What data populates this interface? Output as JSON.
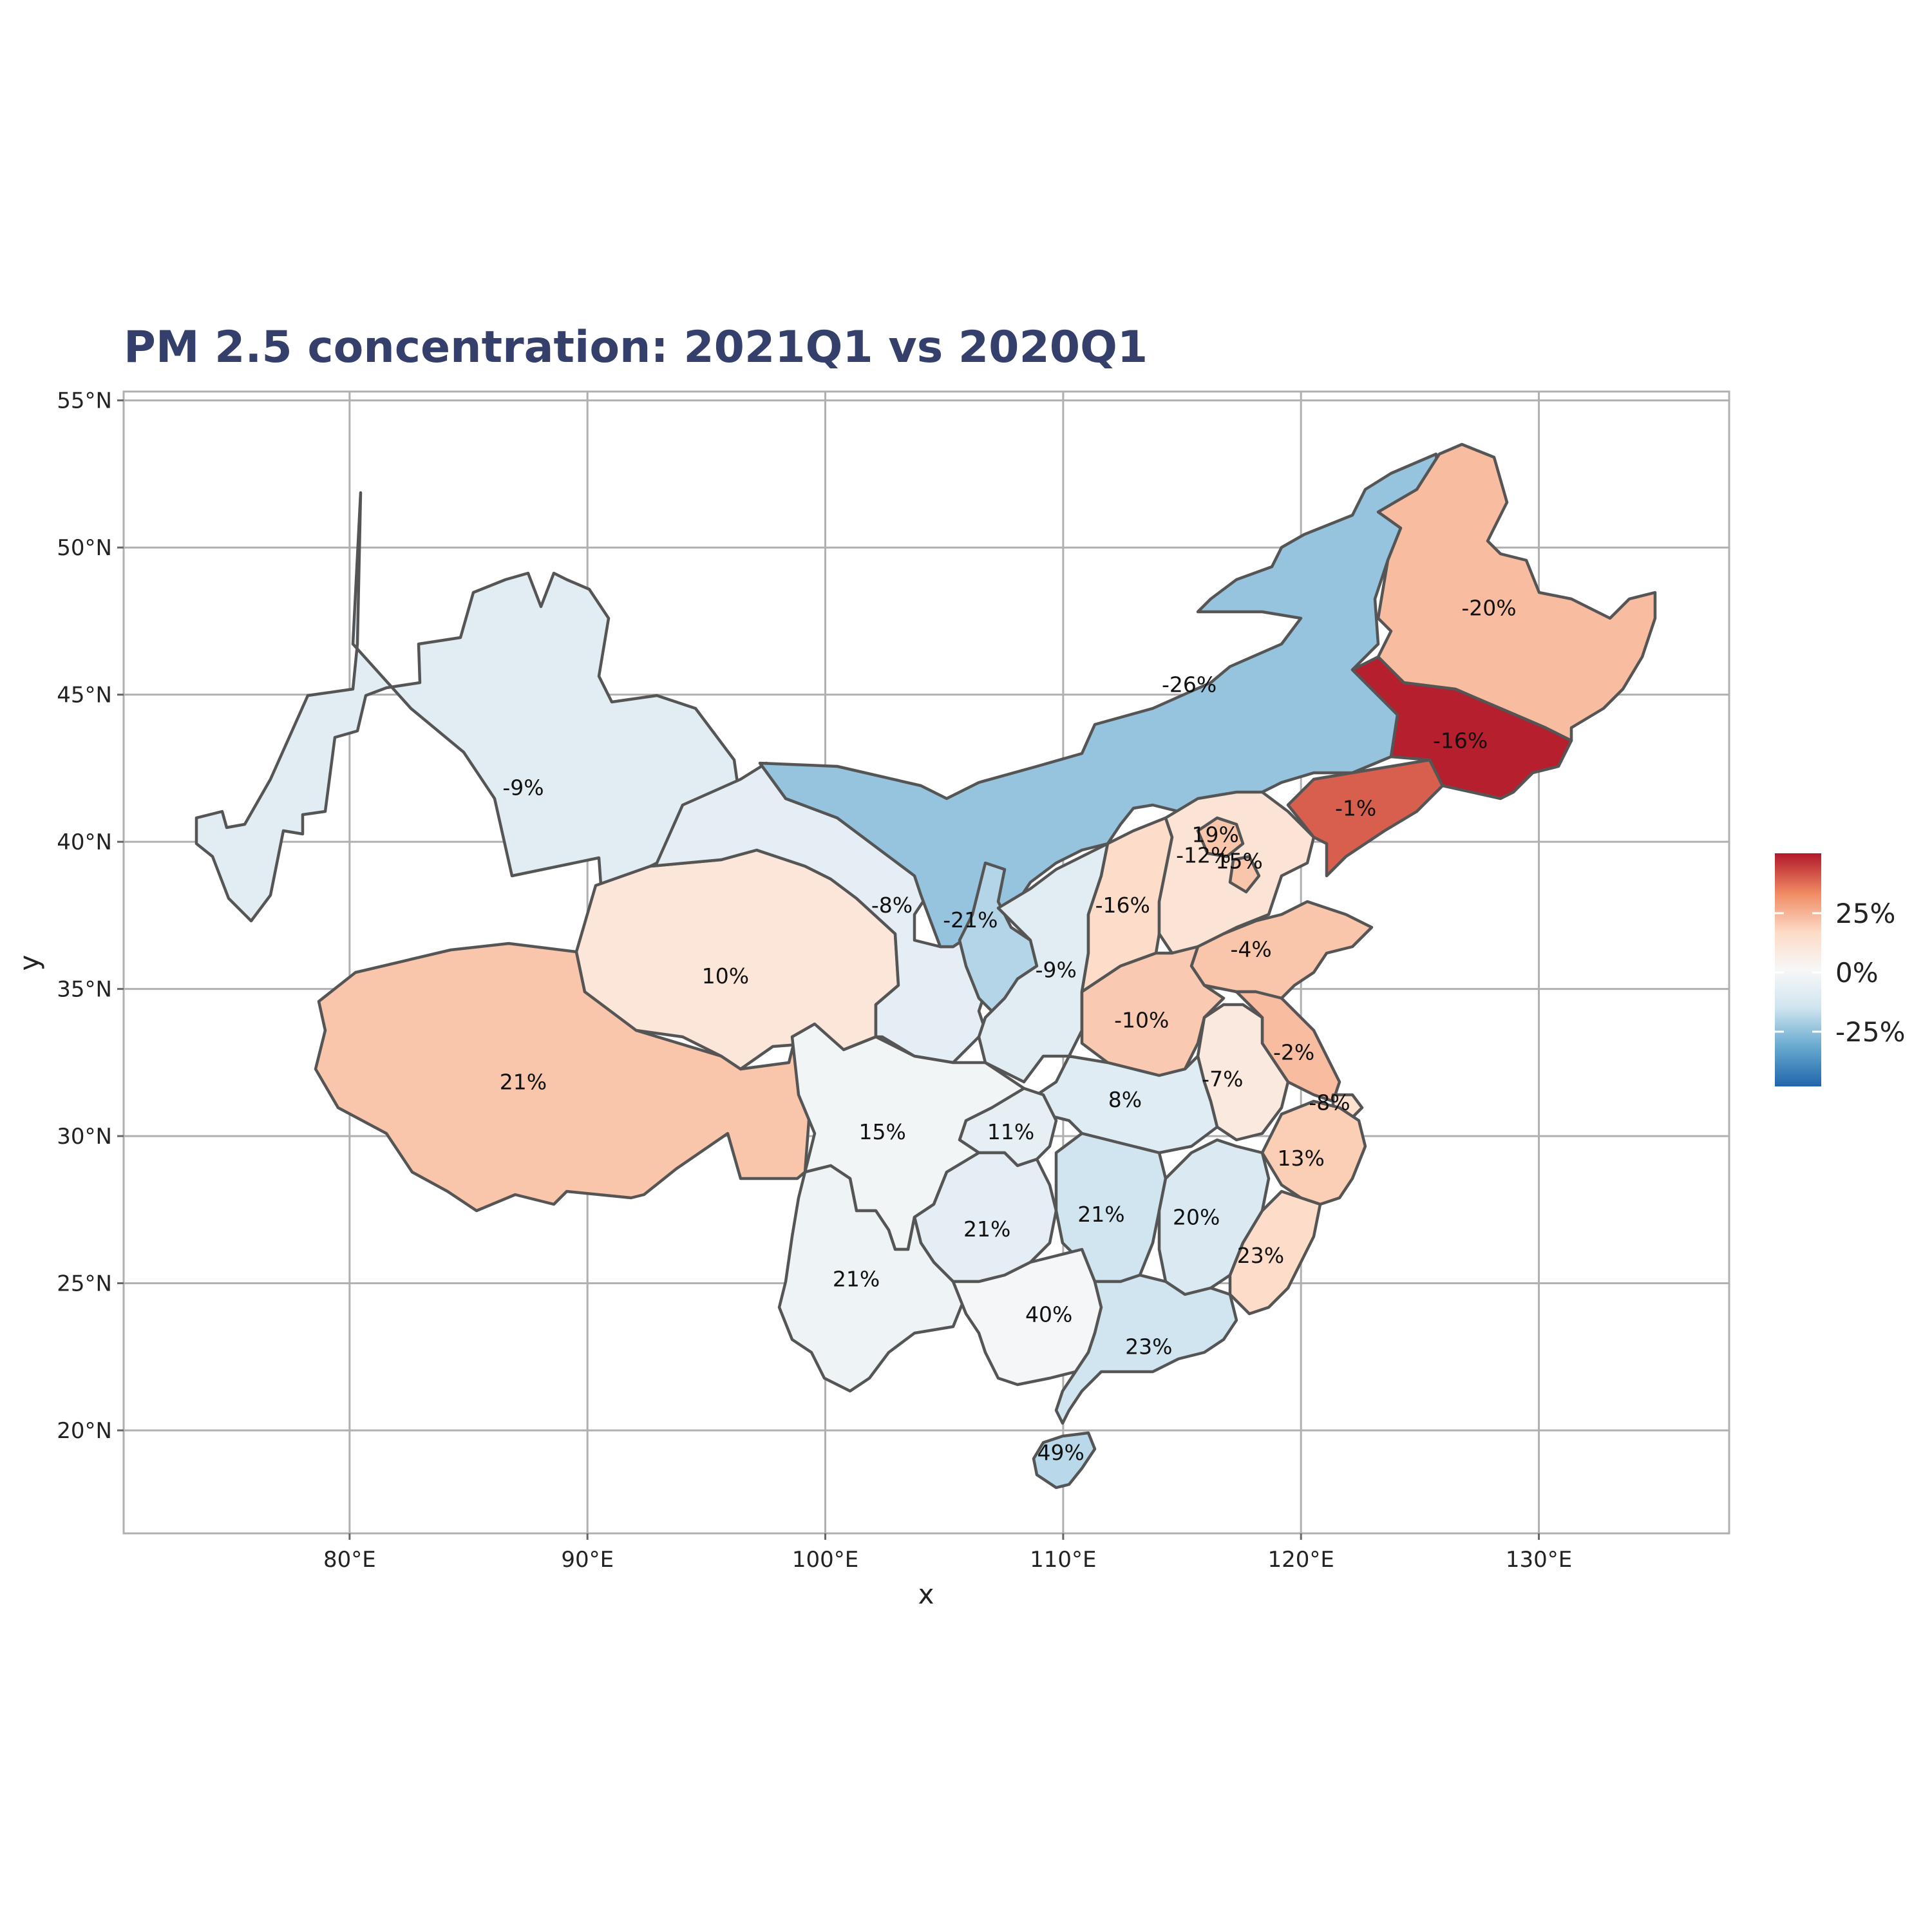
{
  "title": "PM 2.5 concentration: 2021Q1 vs 2020Q1",
  "x_axis": {
    "title": "x",
    "ticks": [
      {
        "value": 80,
        "label": "80°E"
      },
      {
        "value": 90,
        "label": "90°E"
      },
      {
        "value": 100,
        "label": "100°E"
      },
      {
        "value": 110,
        "label": "110°E"
      },
      {
        "value": 120,
        "label": "120°E"
      },
      {
        "value": 130,
        "label": "130°E"
      }
    ],
    "range": [
      70.5,
      138
    ]
  },
  "y_axis": {
    "title": "y",
    "ticks": [
      {
        "value": 20,
        "label": "20°N"
      },
      {
        "value": 25,
        "label": "25°N"
      },
      {
        "value": 30,
        "label": "30°N"
      },
      {
        "value": 35,
        "label": "35°N"
      },
      {
        "value": 40,
        "label": "40°N"
      },
      {
        "value": 45,
        "label": "45°N"
      },
      {
        "value": 50,
        "label": "50°N"
      },
      {
        "value": 55,
        "label": "55°N"
      }
    ],
    "range": [
      16.5,
      55.3
    ]
  },
  "legend": {
    "placement": "right",
    "labels": [
      "25%",
      "0%",
      "-25%"
    ],
    "colors": [
      "#2166ac",
      "#67a9cf",
      "#d1e5f0",
      "#f7f7f7",
      "#fddbc7",
      "#ef8a62",
      "#b2182b"
    ]
  },
  "chart_data": {
    "type": "choropleth",
    "title": "PM 2.5 concentration: 2021Q1 vs 2020Q1",
    "xlabel": "x",
    "ylabel": "y",
    "grid": true,
    "regions": [
      {
        "label": "-9%",
        "value": -9,
        "lon": 87.3,
        "lat": 41.8
      },
      {
        "label": "21%",
        "value": 21,
        "lon": 87.3,
        "lat": 31.8
      },
      {
        "label": "10%",
        "value": 10,
        "lon": 95.8,
        "lat": 35.4
      },
      {
        "label": "-8%",
        "value": -8,
        "lon": 102.8,
        "lat": 37.8
      },
      {
        "label": "-26%",
        "value": -26,
        "lon": 115.3,
        "lat": 45.3
      },
      {
        "label": "-21%",
        "value": -21,
        "lon": 106.1,
        "lat": 37.3
      },
      {
        "label": "-9%",
        "value": -9,
        "lon": 109.7,
        "lat": 35.6
      },
      {
        "label": "15%",
        "value": 15,
        "lon": 102.4,
        "lat": 30.1
      },
      {
        "label": "11%",
        "value": 11,
        "lon": 107.8,
        "lat": 30.1
      },
      {
        "label": "21%",
        "value": 21,
        "lon": 101.3,
        "lat": 25.1
      },
      {
        "label": "21%",
        "value": 21,
        "lon": 106.8,
        "lat": 26.8
      },
      {
        "label": "40%",
        "value": 40,
        "lon": 109.4,
        "lat": 23.9
      },
      {
        "label": "49%",
        "value": 49,
        "lon": 109.9,
        "lat": 19.2
      },
      {
        "label": "23%",
        "value": 23,
        "lon": 113.6,
        "lat": 22.8
      },
      {
        "label": "21%",
        "value": 21,
        "lon": 111.6,
        "lat": 27.3
      },
      {
        "label": "20%",
        "value": 20,
        "lon": 115.6,
        "lat": 27.2
      },
      {
        "label": "23%",
        "value": 23,
        "lon": 118.3,
        "lat": 25.9
      },
      {
        "label": "13%",
        "value": 13,
        "lon": 120.0,
        "lat": 29.2
      },
      {
        "label": "8%",
        "value": 8,
        "lon": 112.6,
        "lat": 31.2
      },
      {
        "label": "-10%",
        "value": -10,
        "lon": 113.3,
        "lat": 33.9
      },
      {
        "label": "-7%",
        "value": -7,
        "lon": 116.7,
        "lat": 31.9
      },
      {
        "label": "-2%",
        "value": -2,
        "lon": 119.7,
        "lat": 32.8
      },
      {
        "label": "-8%",
        "value": -8,
        "lon": 121.2,
        "lat": 31.1
      },
      {
        "label": "-4%",
        "value": -4,
        "lon": 117.9,
        "lat": 36.3
      },
      {
        "label": "-16%",
        "value": -16,
        "lon": 112.5,
        "lat": 37.8
      },
      {
        "label": "-12%",
        "value": -12,
        "lon": 115.9,
        "lat": 39.5
      },
      {
        "label": "19%",
        "value": 19,
        "lon": 116.4,
        "lat": 40.2
      },
      {
        "label": "15%",
        "value": 15,
        "lon": 117.4,
        "lat": 39.3
      },
      {
        "label": "-1%",
        "value": -1,
        "lon": 122.3,
        "lat": 41.1
      },
      {
        "label": "-16%",
        "value": -16,
        "lon": 126.7,
        "lat": 43.4
      },
      {
        "label": "-20%",
        "value": -20,
        "lon": 127.9,
        "lat": 47.9
      }
    ]
  }
}
